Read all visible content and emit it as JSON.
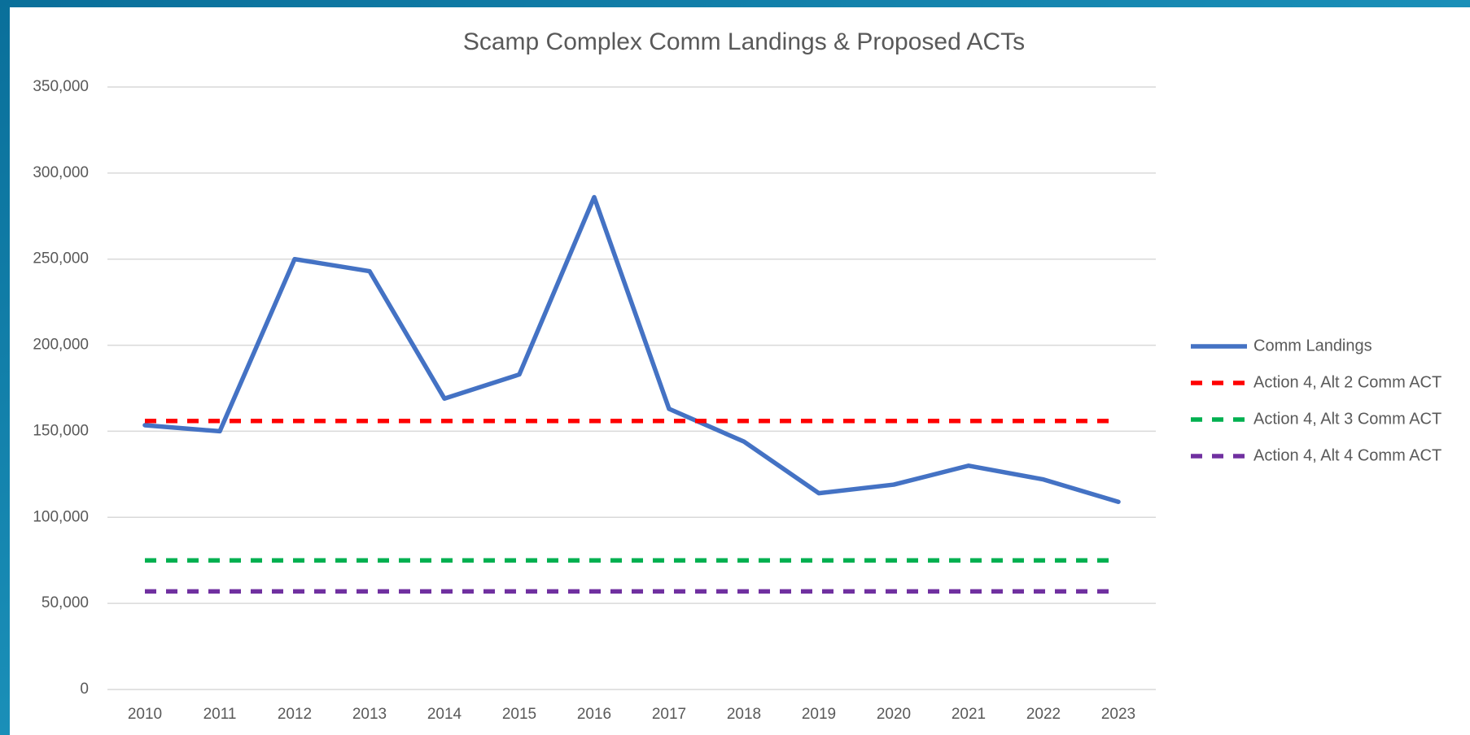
{
  "chart_data": {
    "type": "line",
    "title": "Scamp Complex Comm Landings & Proposed ACTs",
    "categories": [
      "2010",
      "2011",
      "2012",
      "2013",
      "2014",
      "2015",
      "2016",
      "2017",
      "2018",
      "2019",
      "2020",
      "2021",
      "2022",
      "2023"
    ],
    "series": [
      {
        "name": "Comm Landings",
        "color": "#4472c4",
        "line_style": "solid",
        "values": [
          153500,
          150000,
          250000,
          243000,
          169000,
          183000,
          286000,
          163000,
          144000,
          114000,
          119000,
          130000,
          122000,
          109000
        ]
      },
      {
        "name": "Action 4, Alt 2 Comm ACT",
        "color": "#ff0000",
        "line_style": "dashed",
        "values": [
          156000,
          156000,
          156000,
          156000,
          156000,
          156000,
          156000,
          156000,
          156000,
          156000,
          156000,
          156000,
          156000,
          156000
        ]
      },
      {
        "name": "Action 4, Alt 3 Comm ACT",
        "color": "#00b050",
        "line_style": "dashed",
        "values": [
          75000,
          75000,
          75000,
          75000,
          75000,
          75000,
          75000,
          75000,
          75000,
          75000,
          75000,
          75000,
          75000,
          75000
        ]
      },
      {
        "name": "Action 4, Alt 4 Comm ACT",
        "color": "#7030a0",
        "line_style": "dashed",
        "values": [
          57000,
          57000,
          57000,
          57000,
          57000,
          57000,
          57000,
          57000,
          57000,
          57000,
          57000,
          57000,
          57000,
          57000
        ]
      }
    ],
    "ylim": [
      0,
      350000
    ],
    "yticks": [
      {
        "value": 0,
        "label": "0"
      },
      {
        "value": 50000,
        "label": "50,000"
      },
      {
        "value": 100000,
        "label": "100,000"
      },
      {
        "value": 150000,
        "label": "150,000"
      },
      {
        "value": 200000,
        "label": "200,000"
      },
      {
        "value": 250000,
        "label": "250,000"
      },
      {
        "value": 300000,
        "label": "300,000"
      },
      {
        "value": 350000,
        "label": "350,000"
      }
    ],
    "grid": true,
    "legend": "right"
  }
}
